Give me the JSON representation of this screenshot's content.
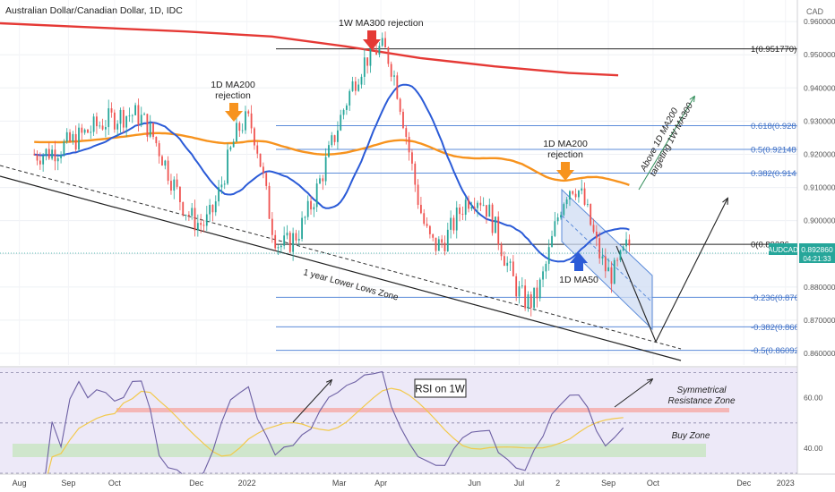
{
  "header": {
    "symbol_title": "Australian Dollar/Canadian Dollar, 1D, IDC",
    "currency": "CAD"
  },
  "price_tag": {
    "symbol": "AUDCAD",
    "price": "0.892860",
    "countdown": "04:21:33"
  },
  "chart_data": [
    {
      "type": "candlestick",
      "title": "Australian Dollar/Canadian Dollar, 1D, IDC",
      "x_axis_labels": [
        "Aug",
        "Sep",
        "Oct",
        "Dec",
        "2022",
        "Mar",
        "Apr",
        "Jun",
        "Jul",
        "2",
        "Sep",
        "Oct",
        "Dec",
        "2023"
      ],
      "y_axis_labels": [
        "0.960000",
        "0.950000",
        "0.940000",
        "0.930000",
        "0.920000",
        "0.910000",
        "0.900000",
        "0.890000",
        "0.880000",
        "0.870000",
        "0.860000"
      ],
      "ylim": [
        0.8565,
        0.9665
      ],
      "unit": "CAD",
      "last_price": 0.89286,
      "key_points": [
        {
          "date": "2021-08",
          "price": 0.92
        },
        {
          "date": "2021-10-20",
          "price": 0.932
        },
        {
          "date": "2021-12-06",
          "price": 0.899
        },
        {
          "date": "2022-01-05",
          "price": 0.93
        },
        {
          "date": "2022-01-28",
          "price": 0.8925
        },
        {
          "date": "2022-04-05",
          "price": 0.95177
        },
        {
          "date": "2022-05-12",
          "price": 0.8925
        },
        {
          "date": "2022-06-07",
          "price": 0.9075
        },
        {
          "date": "2022-07-14",
          "price": 0.8755
        },
        {
          "date": "2022-08-12",
          "price": 0.9105
        },
        {
          "date": "2022-09-07",
          "price": 0.884
        },
        {
          "date": "2022-09-20",
          "price": 0.89286
        }
      ],
      "series": [
        {
          "name": "1W MA300",
          "color": "#e53935",
          "points": [
            [
              0,
              0.9595
            ],
            [
              0.12,
              0.9585
            ],
            [
              0.3,
              0.957
            ],
            [
              0.44,
              0.9555
            ],
            [
              0.56,
              0.9525
            ],
            [
              0.68,
              0.949
            ],
            [
              0.8,
              0.9465
            ],
            [
              0.92,
              0.9445
            ],
            [
              1.0,
              0.9438
            ]
          ]
        },
        {
          "name": "1D MA200",
          "color": "#f7931e"
        },
        {
          "name": "1D MA50",
          "color": "#2b5bd7"
        }
      ],
      "fibonacci": [
        {
          "label": "1(0.951770)",
          "value": 0.95177
        },
        {
          "label": "0.618(0.92863",
          "value": 0.92863
        },
        {
          "label": "0.5(0.921487)",
          "value": 0.921487
        },
        {
          "label": "0.382(0.91434",
          "value": 0.91434
        },
        {
          "label": "0(0.89286",
          "value": 0.89286
        },
        {
          "label": "-0.236(0.8769",
          "value": 0.8769
        },
        {
          "label": "-0.382(0.8680",
          "value": 0.868
        },
        {
          "label": "-0.5(0.860921",
          "value": 0.860921
        }
      ],
      "annotations": [
        {
          "text": "1W MA300 rejection",
          "color": "#e53935"
        },
        {
          "text": "1D MA200 rejection",
          "color": "#f7931e"
        },
        {
          "text": "1D MA200 rejection",
          "color": "#f7931e"
        },
        {
          "text": "1D MA50",
          "color": "#2b5bd7"
        },
        {
          "text": "1 year Lower Lows Zone"
        },
        {
          "text": "Above 1D MA200 targeting 1W MA300"
        }
      ],
      "colors": {
        "bull": "#26a69a",
        "bear": "#ef5350",
        "channel": "#5b8bd9"
      }
    },
    {
      "type": "line",
      "title": "RSI on 1W",
      "y_axis_labels": [
        "60.00",
        "40.00"
      ],
      "ylim": [
        30,
        72
      ],
      "series": [
        {
          "name": "RSI",
          "color": "#7e57c2"
        },
        {
          "name": "RSI MA",
          "color": "#f2c94c"
        }
      ],
      "zones": [
        {
          "label": "Symmetrical Resistance Zone",
          "value": 52,
          "color": "#f4b6b6"
        },
        {
          "label": "Buy Zone",
          "value_range": [
            36.5,
            41.5
          ],
          "color": "#cfe6cc"
        }
      ],
      "levels": [
        70,
        50,
        30
      ],
      "background": "#ede9f8"
    }
  ]
}
